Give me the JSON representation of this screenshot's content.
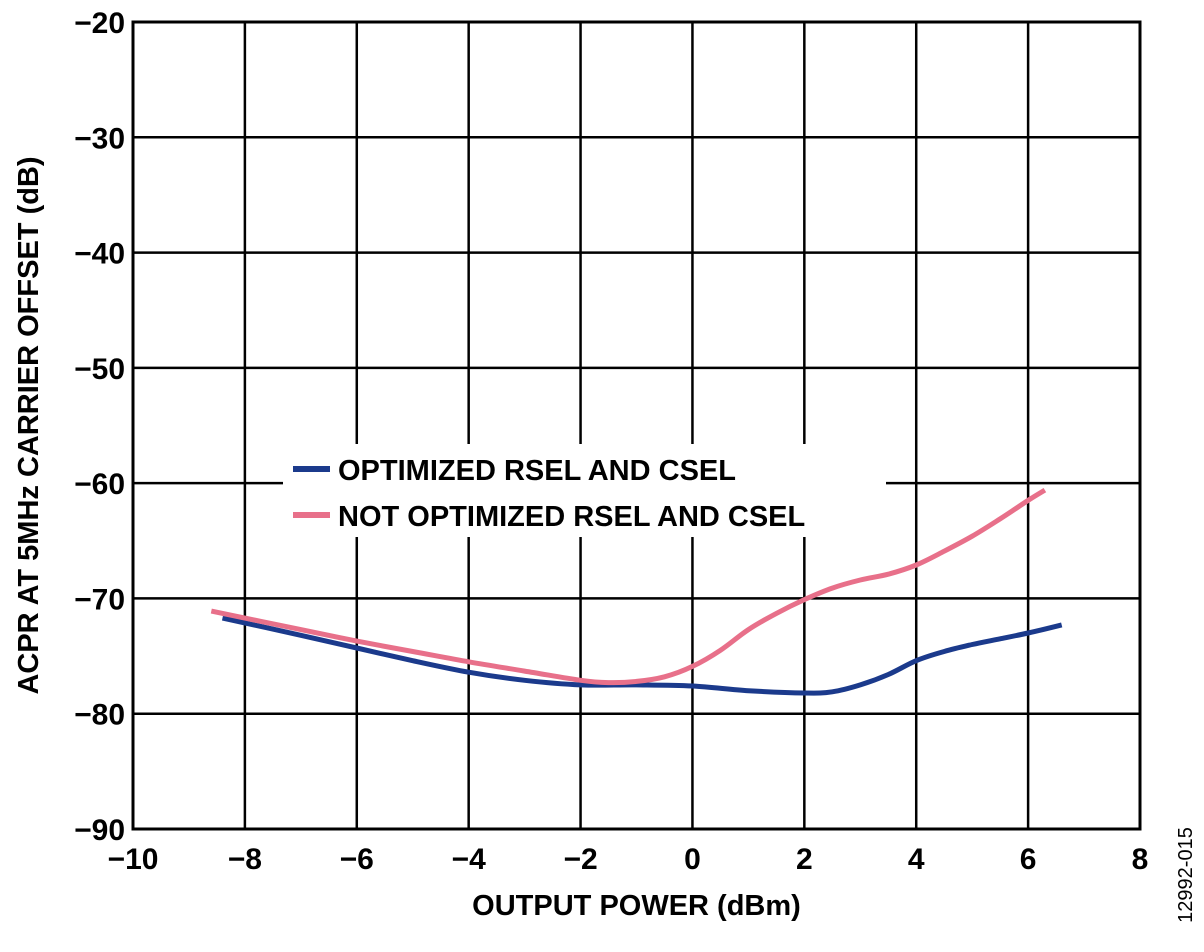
{
  "chart_data": {
    "type": "line",
    "xlabel": "OUTPUT POWER (dBm)",
    "ylabel": "ACPR AT 5MHz CARRIER OFFSET (dB)",
    "xlim": [
      -10,
      8
    ],
    "ylim": [
      -90,
      -20
    ],
    "xticks": [
      -10,
      -8,
      -6,
      -4,
      -2,
      0,
      2,
      4,
      6,
      8
    ],
    "yticks": [
      -90,
      -80,
      -70,
      -60,
      -50,
      -40,
      -30,
      -20
    ],
    "x_tick_labels": [
      "−10",
      "−8",
      "−6",
      "−4",
      "−2",
      "0",
      "2",
      "4",
      "6",
      "8"
    ],
    "y_tick_labels": [
      "−90",
      "−80",
      "−70",
      "−60",
      "−50",
      "−40",
      "−30",
      "−20"
    ],
    "grid": true,
    "legend_position": "center-left",
    "figure_id": "12992-015",
    "series": [
      {
        "name": "OPTIMIZED RSEL AND CSEL",
        "color": "#1b3a8c",
        "x": [
          -8.4,
          -7,
          -6,
          -5,
          -4,
          -3,
          -2,
          -1,
          0,
          1,
          2,
          2.5,
          3,
          3.5,
          4,
          4.5,
          5,
          5.5,
          6,
          6.6
        ],
        "y": [
          -71.7,
          -73.2,
          -74.3,
          -75.4,
          -76.4,
          -77.1,
          -77.5,
          -77.5,
          -77.6,
          -78.0,
          -78.2,
          -78.1,
          -77.5,
          -76.6,
          -75.4,
          -74.6,
          -74.0,
          -73.5,
          -73.0,
          -72.3
        ]
      },
      {
        "name": "NOT OPTIMIZED RSEL AND CSEL",
        "color": "#e8708a",
        "x": [
          -8.6,
          -7,
          -6,
          -5,
          -4,
          -3,
          -2,
          -1.5,
          -1,
          -0.5,
          0,
          0.5,
          1,
          1.5,
          2,
          2.5,
          3,
          3.5,
          4,
          4.5,
          5,
          5.5,
          6,
          6.3
        ],
        "y": [
          -71.1,
          -72.7,
          -73.7,
          -74.6,
          -75.5,
          -76.3,
          -77.1,
          -77.3,
          -77.2,
          -76.8,
          -75.9,
          -74.5,
          -72.7,
          -71.3,
          -70.1,
          -69.1,
          -68.4,
          -67.9,
          -67.1,
          -65.9,
          -64.6,
          -63.1,
          -61.5,
          -60.6
        ]
      }
    ]
  }
}
